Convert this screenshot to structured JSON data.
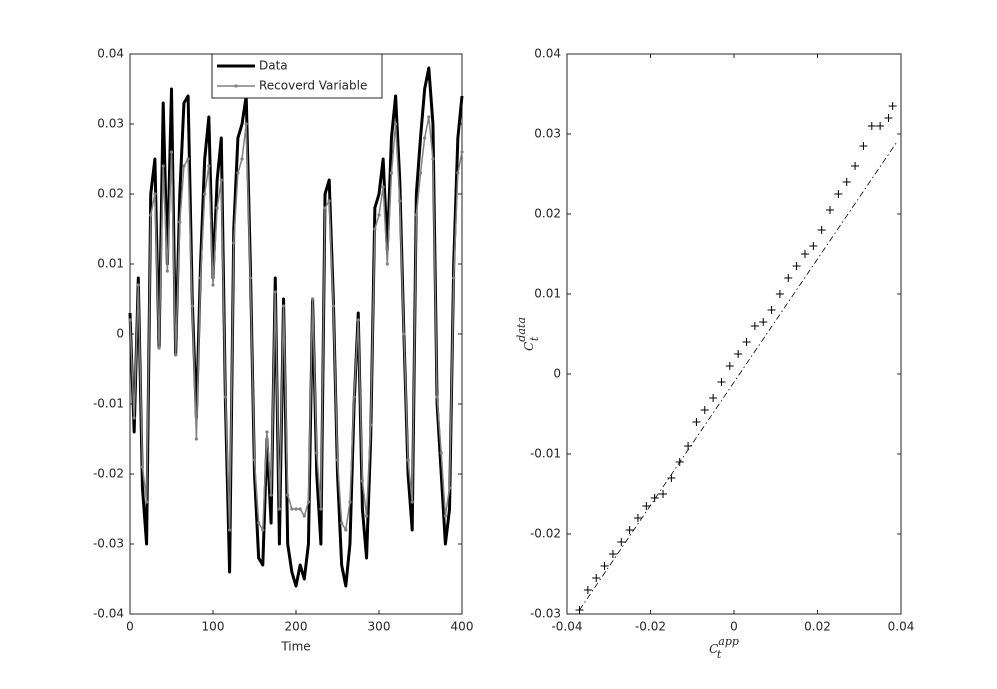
{
  "chart_data": [
    {
      "type": "line",
      "xlabel": "Time",
      "x": [
        0,
        5,
        10,
        15,
        20,
        25,
        30,
        35,
        40,
        45,
        50,
        55,
        60,
        65,
        70,
        75,
        80,
        85,
        90,
        95,
        100,
        105,
        110,
        115,
        120,
        125,
        130,
        135,
        140,
        145,
        150,
        155,
        160,
        165,
        170,
        175,
        180,
        185,
        190,
        195,
        200,
        205,
        210,
        215,
        220,
        225,
        230,
        235,
        240,
        245,
        250,
        255,
        260,
        265,
        270,
        275,
        280,
        285,
        290,
        295,
        300,
        305,
        310,
        315,
        320,
        325,
        330,
        335,
        340,
        345,
        350,
        355,
        360,
        365,
        370,
        375,
        380,
        385,
        390,
        395,
        400
      ],
      "series": [
        {
          "name": "Data",
          "color": "#000000",
          "values": [
            0.003,
            -0.014,
            0.008,
            -0.022,
            -0.03,
            0.02,
            0.025,
            -0.002,
            0.033,
            0.01,
            0.035,
            -0.003,
            0.02,
            0.033,
            0.034,
            0.005,
            -0.012,
            0.01,
            0.025,
            0.031,
            0.008,
            0.022,
            0.028,
            -0.01,
            -0.034,
            0.015,
            0.028,
            0.03,
            0.034,
            0.01,
            -0.02,
            -0.032,
            -0.033,
            -0.015,
            -0.027,
            0.008,
            -0.03,
            0.005,
            -0.03,
            -0.034,
            -0.036,
            -0.033,
            -0.035,
            -0.03,
            0.005,
            -0.02,
            -0.03,
            0.02,
            0.022,
            0.005,
            -0.02,
            -0.033,
            -0.036,
            -0.03,
            -0.01,
            0.003,
            -0.025,
            -0.032,
            -0.015,
            0.018,
            0.02,
            0.025,
            0.012,
            0.028,
            0.034,
            0.022,
            0,
            -0.02,
            -0.028,
            0.02,
            0.028,
            0.035,
            0.038,
            0.03,
            -0.01,
            -0.02,
            -0.03,
            -0.025,
            0.01,
            0.028,
            0.034
          ]
        },
        {
          "name": "Recoverd Variable",
          "color": "#808080",
          "values": [
            0.002,
            -0.012,
            0.007,
            -0.019,
            -0.024,
            0.017,
            0.02,
            -0.002,
            0.024,
            0.009,
            0.026,
            -0.003,
            0.016,
            0.024,
            0.025,
            0.004,
            -0.015,
            0.008,
            0.02,
            0.024,
            0.007,
            0.018,
            0.022,
            -0.009,
            -0.028,
            0.013,
            0.023,
            0.025,
            0.03,
            0.008,
            -0.018,
            -0.027,
            -0.028,
            -0.014,
            -0.023,
            0.006,
            -0.025,
            0.004,
            -0.023,
            -0.025,
            -0.025,
            -0.025,
            -0.026,
            -0.024,
            0.005,
            -0.017,
            -0.025,
            0.018,
            0.019,
            0.004,
            -0.018,
            -0.027,
            -0.028,
            -0.024,
            -0.009,
            0.002,
            -0.021,
            -0.026,
            -0.013,
            0.015,
            0.017,
            0.021,
            0.01,
            0.023,
            0.03,
            0.019,
            0,
            -0.018,
            -0.024,
            0.017,
            0.023,
            0.028,
            0.031,
            0.025,
            -0.009,
            -0.017,
            -0.026,
            -0.022,
            0.008,
            0.023,
            0.026
          ]
        }
      ],
      "xlim": [
        0,
        400
      ],
      "xticks": [
        0,
        100,
        200,
        300,
        400
      ],
      "ylim": [
        -0.04,
        0.04
      ],
      "yticks": [
        -0.04,
        -0.03,
        -0.02,
        -0.01,
        0,
        0.01,
        0.02,
        0.03,
        0.04
      ],
      "legend": "top"
    },
    {
      "type": "scatter",
      "xlabel": {
        "base": "C",
        "sub": "t",
        "sup": "app"
      },
      "ylabel": {
        "base": "C",
        "sub": "t",
        "sup": "data"
      },
      "x": [
        -0.037,
        -0.035,
        -0.033,
        -0.031,
        -0.029,
        -0.027,
        -0.025,
        -0.023,
        -0.021,
        -0.019,
        -0.017,
        -0.015,
        -0.013,
        -0.011,
        -0.009,
        -0.007,
        -0.005,
        -0.003,
        -0.001,
        0.001,
        0.003,
        0.005,
        0.007,
        0.009,
        0.011,
        0.013,
        0.015,
        0.017,
        0.019,
        0.021,
        0.023,
        0.025,
        0.027,
        0.029,
        0.031,
        0.033,
        0.035,
        0.037,
        0.038
      ],
      "values": [
        -0.0295,
        -0.027,
        -0.0255,
        -0.024,
        -0.0225,
        -0.021,
        -0.0195,
        -0.018,
        -0.0165,
        -0.0155,
        -0.015,
        -0.013,
        -0.011,
        -0.009,
        -0.006,
        -0.0045,
        -0.003,
        -0.001,
        0.001,
        0.0025,
        0.004,
        0.006,
        0.0065,
        0.008,
        0.01,
        0.012,
        0.0135,
        0.015,
        0.016,
        0.018,
        0.0205,
        0.0225,
        0.024,
        0.026,
        0.0285,
        0.031,
        0.031,
        0.032,
        0.0335
      ],
      "color": "#000000",
      "reference_line": {
        "x": [
          -0.037,
          0.039
        ],
        "y": [
          -0.0295,
          0.029
        ]
      },
      "xlim": [
        -0.04,
        0.04
      ],
      "xticks": [
        -0.04,
        -0.02,
        0,
        0.02,
        0.04
      ],
      "ylim": [
        -0.03,
        0.04
      ],
      "yticks": [
        -0.03,
        -0.02,
        -0.01,
        0,
        0.01,
        0.02,
        0.03,
        0.04
      ]
    }
  ]
}
